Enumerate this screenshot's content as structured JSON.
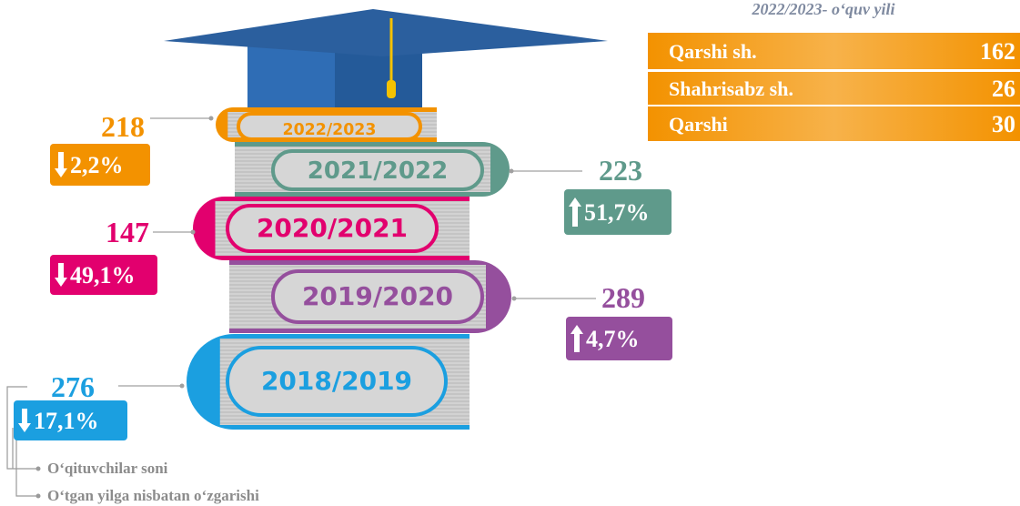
{
  "subtitle": "2022/2023- o‘quv yili",
  "table": {
    "rows": [
      [
        "Qarshi sh.",
        162
      ],
      [
        "Shahrisabz sh.",
        26
      ],
      [
        "Qarshi",
        30
      ]
    ]
  },
  "books": [
    {
      "year": "2022/2023",
      "count": 218,
      "change": "2,2%",
      "direction": "down",
      "color": "#f39200"
    },
    {
      "year": "2021/2022",
      "count": 223,
      "change": "51,7%",
      "direction": "up",
      "color": "#5f9a8b"
    },
    {
      "year": "2020/2021",
      "count": 147,
      "change": "49,1%",
      "direction": "down",
      "color": "#e2006e"
    },
    {
      "year": "2019/2020",
      "count": 289,
      "change": "4,7%",
      "direction": "up",
      "color": "#954f9d"
    },
    {
      "year": "2018/2019",
      "count": 276,
      "change": "17,1%",
      "direction": "down",
      "color": "#1b9fe0"
    }
  ],
  "legend": [
    "O‘qituvchilar soni",
    "O‘tgan yilga nisbatan o‘zgarishi"
  ]
}
